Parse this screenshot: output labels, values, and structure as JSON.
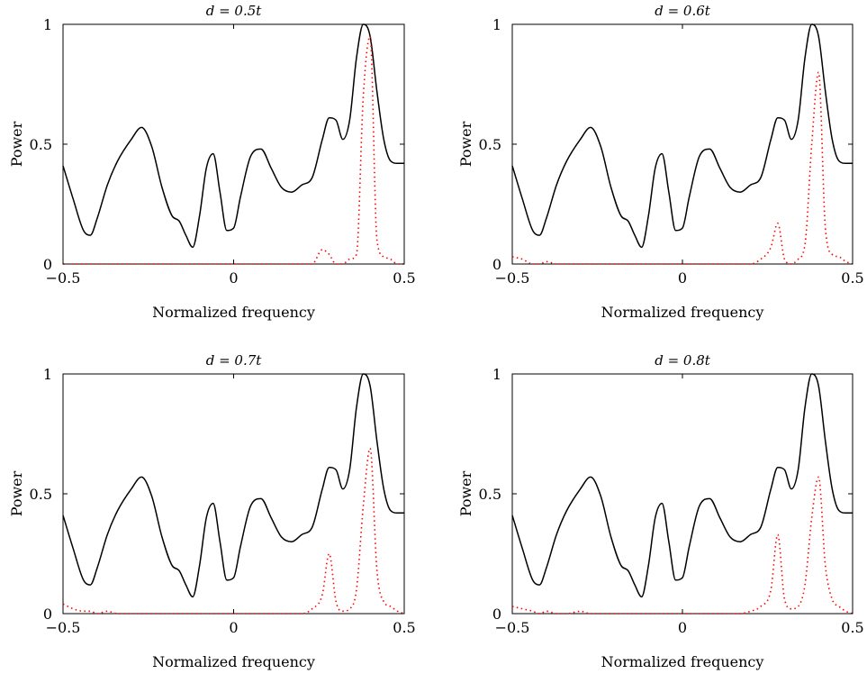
{
  "chart_data": [
    {
      "type": "line",
      "title": "d = 0.5t",
      "xlabel": "Normalized frequency",
      "ylabel": "Power",
      "xlim": [
        -0.5,
        0.5
      ],
      "ylim": [
        0,
        1
      ],
      "xticks": [
        "−0.5",
        "0",
        "0.5"
      ],
      "yticks": [
        "0",
        "0.5",
        "1"
      ],
      "grid": false,
      "x": [
        -0.5,
        -0.47,
        -0.44,
        -0.42,
        -0.4,
        -0.37,
        -0.34,
        -0.3,
        -0.27,
        -0.24,
        -0.21,
        -0.18,
        -0.16,
        -0.14,
        -0.12,
        -0.1,
        -0.08,
        -0.06,
        -0.04,
        -0.02,
        0,
        0.02,
        0.05,
        0.08,
        0.11,
        0.14,
        0.17,
        0.2,
        0.23,
        0.26,
        0.28,
        0.3,
        0.32,
        0.34,
        0.36,
        0.38,
        0.4,
        0.42,
        0.44,
        0.46,
        0.48,
        0.5
      ],
      "series": [
        {
          "color": "#000000",
          "values": [
            0.41,
            0.27,
            0.14,
            0.12,
            0.19,
            0.33,
            0.43,
            0.52,
            0.57,
            0.49,
            0.32,
            0.2,
            0.18,
            0.12,
            0.07,
            0.2,
            0.4,
            0.46,
            0.3,
            0.14,
            0.15,
            0.28,
            0.45,
            0.48,
            0.4,
            0.32,
            0.3,
            0.33,
            0.36,
            0.52,
            0.61,
            0.6,
            0.52,
            0.6,
            0.86,
            1.0,
            0.95,
            0.72,
            0.52,
            0.43,
            0.42,
            0.42
          ]
        },
        {
          "color": "#ff0000",
          "values": [
            0.0,
            0.0,
            0.0,
            0.0,
            0.0,
            0.0,
            0.0,
            0.0,
            0.0,
            0.0,
            0.0,
            0.0,
            0.0,
            0.0,
            0.0,
            0.0,
            0.0,
            0.0,
            0.0,
            0.0,
            0.0,
            0.0,
            0.0,
            0.0,
            0.0,
            0.0,
            0.0,
            0.0,
            0.0,
            0.06,
            0.04,
            0.0,
            0.0,
            0.02,
            0.04,
            0.7,
            0.95,
            0.1,
            0.03,
            0.02,
            0.0,
            0.0
          ]
        }
      ]
    },
    {
      "type": "line",
      "title": "d = 0.6t",
      "xlabel": "Normalized frequency",
      "ylabel": "Power",
      "xlim": [
        -0.5,
        0.5
      ],
      "ylim": [
        0,
        1
      ],
      "xticks": [
        "−0.5",
        "0",
        "0.5"
      ],
      "yticks": [
        "0",
        "0.5",
        "1"
      ],
      "grid": false,
      "x": [
        -0.5,
        -0.47,
        -0.44,
        -0.42,
        -0.4,
        -0.37,
        -0.34,
        -0.3,
        -0.27,
        -0.24,
        -0.21,
        -0.18,
        -0.16,
        -0.14,
        -0.12,
        -0.1,
        -0.08,
        -0.06,
        -0.04,
        -0.02,
        0,
        0.02,
        0.05,
        0.08,
        0.11,
        0.14,
        0.17,
        0.2,
        0.23,
        0.26,
        0.28,
        0.3,
        0.32,
        0.34,
        0.36,
        0.38,
        0.4,
        0.42,
        0.44,
        0.46,
        0.48,
        0.5
      ],
      "series": [
        {
          "color": "#000000",
          "values": [
            0.41,
            0.27,
            0.14,
            0.12,
            0.19,
            0.33,
            0.43,
            0.52,
            0.57,
            0.49,
            0.32,
            0.2,
            0.18,
            0.12,
            0.07,
            0.2,
            0.4,
            0.46,
            0.3,
            0.14,
            0.15,
            0.28,
            0.45,
            0.48,
            0.4,
            0.32,
            0.3,
            0.33,
            0.36,
            0.52,
            0.61,
            0.6,
            0.52,
            0.6,
            0.86,
            1.0,
            0.95,
            0.72,
            0.52,
            0.43,
            0.42,
            0.42
          ]
        },
        {
          "color": "#ff0000",
          "values": [
            0.03,
            0.02,
            0.0,
            0.0,
            0.01,
            0.0,
            0.0,
            0.0,
            0.0,
            0.0,
            0.0,
            0.0,
            0.0,
            0.0,
            0.0,
            0.0,
            0.0,
            0.0,
            0.0,
            0.0,
            0.0,
            0.0,
            0.0,
            0.0,
            0.0,
            0.0,
            0.0,
            0.0,
            0.02,
            0.07,
            0.17,
            0.02,
            0.0,
            0.02,
            0.08,
            0.5,
            0.8,
            0.15,
            0.04,
            0.03,
            0.01,
            0.0
          ]
        }
      ]
    },
    {
      "type": "line",
      "title": "d = 0.7t",
      "xlabel": "Normalized frequency",
      "ylabel": "Power",
      "xlim": [
        -0.5,
        0.5
      ],
      "ylim": [
        0,
        1
      ],
      "xticks": [
        "−0.5",
        "0",
        "0.5"
      ],
      "yticks": [
        "0",
        "0.5",
        "1"
      ],
      "grid": false,
      "x": [
        -0.5,
        -0.47,
        -0.44,
        -0.42,
        -0.4,
        -0.37,
        -0.34,
        -0.3,
        -0.27,
        -0.24,
        -0.21,
        -0.18,
        -0.16,
        -0.14,
        -0.12,
        -0.1,
        -0.08,
        -0.06,
        -0.04,
        -0.02,
        0,
        0.02,
        0.05,
        0.08,
        0.11,
        0.14,
        0.17,
        0.2,
        0.23,
        0.26,
        0.28,
        0.3,
        0.32,
        0.34,
        0.36,
        0.38,
        0.4,
        0.42,
        0.44,
        0.46,
        0.48,
        0.5
      ],
      "series": [
        {
          "color": "#000000",
          "values": [
            0.41,
            0.27,
            0.14,
            0.12,
            0.19,
            0.33,
            0.43,
            0.52,
            0.57,
            0.49,
            0.32,
            0.2,
            0.18,
            0.12,
            0.07,
            0.2,
            0.4,
            0.46,
            0.3,
            0.14,
            0.15,
            0.28,
            0.45,
            0.48,
            0.4,
            0.32,
            0.3,
            0.33,
            0.36,
            0.52,
            0.61,
            0.6,
            0.52,
            0.6,
            0.86,
            1.0,
            0.95,
            0.72,
            0.52,
            0.43,
            0.42,
            0.42
          ]
        },
        {
          "color": "#ff0000",
          "values": [
            0.04,
            0.02,
            0.01,
            0.01,
            0.0,
            0.01,
            0.0,
            0.0,
            0.0,
            0.0,
            0.0,
            0.0,
            0.0,
            0.0,
            0.0,
            0.0,
            0.0,
            0.0,
            0.0,
            0.0,
            0.0,
            0.0,
            0.0,
            0.0,
            0.0,
            0.0,
            0.0,
            0.0,
            0.02,
            0.08,
            0.25,
            0.05,
            0.01,
            0.02,
            0.1,
            0.45,
            0.69,
            0.18,
            0.05,
            0.03,
            0.01,
            0.0
          ]
        }
      ]
    },
    {
      "type": "line",
      "title": "d = 0.8t",
      "xlabel": "Normalized frequency",
      "ylabel": "Power",
      "xlim": [
        -0.5,
        0.5
      ],
      "ylim": [
        0,
        1
      ],
      "xticks": [
        "−0.5",
        "0",
        "0.5"
      ],
      "yticks": [
        "0",
        "0.5",
        "1"
      ],
      "grid": false,
      "x": [
        -0.5,
        -0.47,
        -0.44,
        -0.42,
        -0.4,
        -0.37,
        -0.34,
        -0.3,
        -0.27,
        -0.24,
        -0.21,
        -0.18,
        -0.16,
        -0.14,
        -0.12,
        -0.1,
        -0.08,
        -0.06,
        -0.04,
        -0.02,
        0,
        0.02,
        0.05,
        0.08,
        0.11,
        0.14,
        0.17,
        0.2,
        0.23,
        0.26,
        0.28,
        0.3,
        0.32,
        0.34,
        0.36,
        0.38,
        0.4,
        0.42,
        0.44,
        0.46,
        0.48,
        0.5
      ],
      "series": [
        {
          "color": "#000000",
          "values": [
            0.41,
            0.27,
            0.14,
            0.12,
            0.19,
            0.33,
            0.43,
            0.52,
            0.57,
            0.49,
            0.32,
            0.2,
            0.18,
            0.12,
            0.07,
            0.2,
            0.4,
            0.46,
            0.3,
            0.14,
            0.15,
            0.28,
            0.45,
            0.48,
            0.4,
            0.32,
            0.3,
            0.33,
            0.36,
            0.52,
            0.61,
            0.6,
            0.52,
            0.6,
            0.86,
            1.0,
            0.95,
            0.72,
            0.52,
            0.43,
            0.42,
            0.42
          ]
        },
        {
          "color": "#ff0000",
          "values": [
            0.03,
            0.02,
            0.01,
            0.0,
            0.01,
            0.0,
            0.0,
            0.01,
            0.0,
            0.0,
            0.0,
            0.0,
            0.0,
            0.0,
            0.0,
            0.0,
            0.0,
            0.0,
            0.0,
            0.0,
            0.0,
            0.0,
            0.0,
            0.0,
            0.0,
            0.0,
            0.0,
            0.01,
            0.03,
            0.1,
            0.33,
            0.06,
            0.02,
            0.03,
            0.12,
            0.4,
            0.57,
            0.2,
            0.06,
            0.03,
            0.01,
            0.0
          ]
        }
      ]
    }
  ]
}
